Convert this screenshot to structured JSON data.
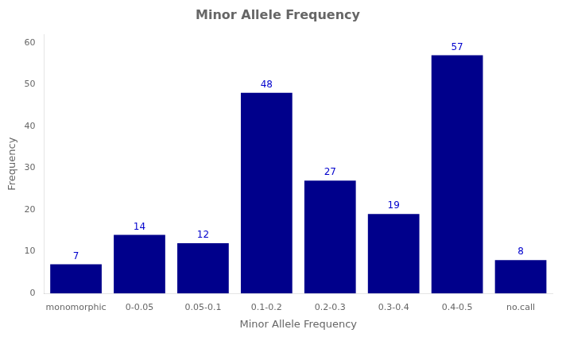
{
  "chart_data": {
    "type": "bar",
    "title": "Minor Allele Frequency",
    "xlabel": "Minor Allele Frequency",
    "ylabel": "Frequency",
    "categories": [
      "monomorphic",
      "0-0.05",
      "0.05-0.1",
      "0.1-0.2",
      "0.2-0.3",
      "0.3-0.4",
      "0.4-0.5",
      "no.call"
    ],
    "values": [
      7,
      14,
      12,
      48,
      27,
      19,
      57,
      8
    ],
    "color": "#00008B",
    "ylim": [
      0,
      62
    ],
    "yticks": [
      0,
      10,
      20,
      30,
      40,
      50,
      60
    ],
    "grid": false,
    "data_labels": true
  }
}
